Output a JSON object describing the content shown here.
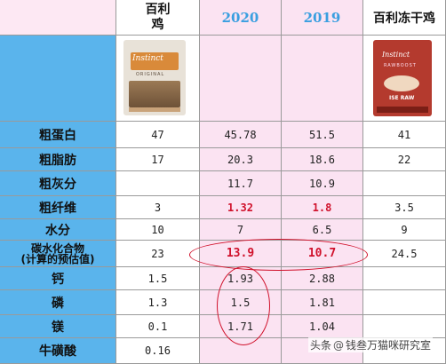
{
  "header": {
    "col0": "",
    "col1_line1": "百利",
    "col1_line2": "鸡",
    "col2": "2020",
    "col3": "2019",
    "col4": "百利冻干鸡"
  },
  "images": {
    "col1": {
      "brand": "Instinct",
      "sub": "ORIGINAL"
    },
    "col4": {
      "brand": "Instinct",
      "sub": "RAWBOOST",
      "raw": "ISE RAW"
    }
  },
  "rows": [
    {
      "label": "粗蛋白",
      "v1": "47",
      "v2": "45.78",
      "v3": "51.5",
      "v4": "41"
    },
    {
      "label": "粗脂肪",
      "v1": "17",
      "v2": "20.3",
      "v3": "18.6",
      "v4": "22"
    },
    {
      "label": "粗灰分",
      "v1": "",
      "v2": "11.7",
      "v3": "10.9",
      "v4": ""
    },
    {
      "label": "粗纤维",
      "v1": "3",
      "v2": "1.32",
      "v3": "1.8",
      "v4": "3.5"
    },
    {
      "label": "水分",
      "v1": "10",
      "v2": "7",
      "v3": "6.5",
      "v4": "9"
    },
    {
      "label_line1": "碳水化合物",
      "label_line2": "(计算的预估值)",
      "v1": "23",
      "v2": "13.9",
      "v3": "10.7",
      "v4": "24.5"
    },
    {
      "label": "钙",
      "v1": "1.5",
      "v2": "1.93",
      "v3": "2.88",
      "v4": ""
    },
    {
      "label": "磷",
      "v1": "1.3",
      "v2": "1.5",
      "v3": "1.81",
      "v4": ""
    },
    {
      "label": "镁",
      "v1": "0.1",
      "v2": "1.71",
      "v3": "1.04",
      "v4": ""
    },
    {
      "label": "牛磺酸",
      "v1": "0.16",
      "v2": "",
      "v3": "",
      "v4": ""
    }
  ],
  "watermark": {
    "prefix": "头条",
    "at": "@",
    "name": "钱叁万猫咪研究室"
  },
  "colors": {
    "label_bg": "#5ab4ec",
    "year_bg": "#fbe3f2",
    "highlight_red": "#d0112b",
    "year_text": "#3a9fe0"
  }
}
